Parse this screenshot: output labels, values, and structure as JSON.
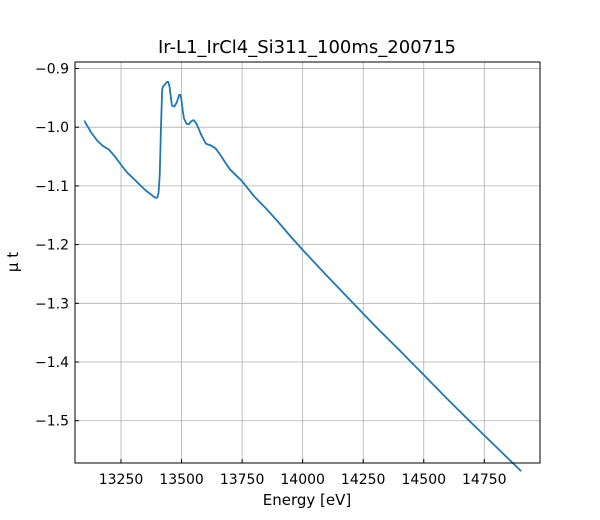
{
  "chart_data": {
    "type": "line",
    "title": "Ir-L1_IrCl4_Si311_100ms_200715",
    "xlabel": "Energy [eV]",
    "ylabel": "μ t",
    "xlim": [
      13060,
      14980
    ],
    "ylim": [
      -1.572,
      -0.889
    ],
    "xticks": [
      13250,
      13500,
      13750,
      14000,
      14250,
      14500,
      14750
    ],
    "yticks": [
      -0.9,
      -1.0,
      -1.1,
      -1.2,
      -1.3,
      -1.4,
      -1.5
    ],
    "grid": true,
    "series": [
      {
        "color": "#1f77b4",
        "x": [
          13100,
          13125,
          13150,
          13175,
          13200,
          13225,
          13250,
          13275,
          13300,
          13325,
          13350,
          13375,
          13390,
          13400,
          13405,
          13410,
          13415,
          13420,
          13425,
          13430,
          13435,
          13440,
          13445,
          13450,
          13460,
          13470,
          13480,
          13490,
          13495,
          13500,
          13505,
          13510,
          13520,
          13530,
          13540,
          13550,
          13560,
          13570,
          13580,
          13600,
          13620,
          13640,
          13660,
          13680,
          13700,
          13725,
          13750,
          13775,
          13800,
          13850,
          13900,
          13950,
          14000,
          14100,
          14200,
          14300,
          14400,
          14500,
          14600,
          14700,
          14800,
          14900
        ],
        "y": [
          -0.99,
          -1.008,
          -1.022,
          -1.032,
          -1.038,
          -1.05,
          -1.064,
          -1.077,
          -1.087,
          -1.097,
          -1.107,
          -1.115,
          -1.12,
          -1.12,
          -1.112,
          -1.08,
          -1.0,
          -0.935,
          -0.93,
          -0.928,
          -0.925,
          -0.923,
          -0.923,
          -0.93,
          -0.963,
          -0.965,
          -0.958,
          -0.945,
          -0.945,
          -0.955,
          -0.972,
          -0.985,
          -0.994,
          -0.995,
          -0.99,
          -0.988,
          -0.993,
          -1.002,
          -1.012,
          -1.028,
          -1.031,
          -1.036,
          -1.047,
          -1.06,
          -1.072,
          -1.082,
          -1.092,
          -1.105,
          -1.118,
          -1.139,
          -1.162,
          -1.186,
          -1.209,
          -1.253,
          -1.296,
          -1.339,
          -1.38,
          -1.422,
          -1.464,
          -1.505,
          -1.545,
          -1.585
        ]
      }
    ]
  }
}
